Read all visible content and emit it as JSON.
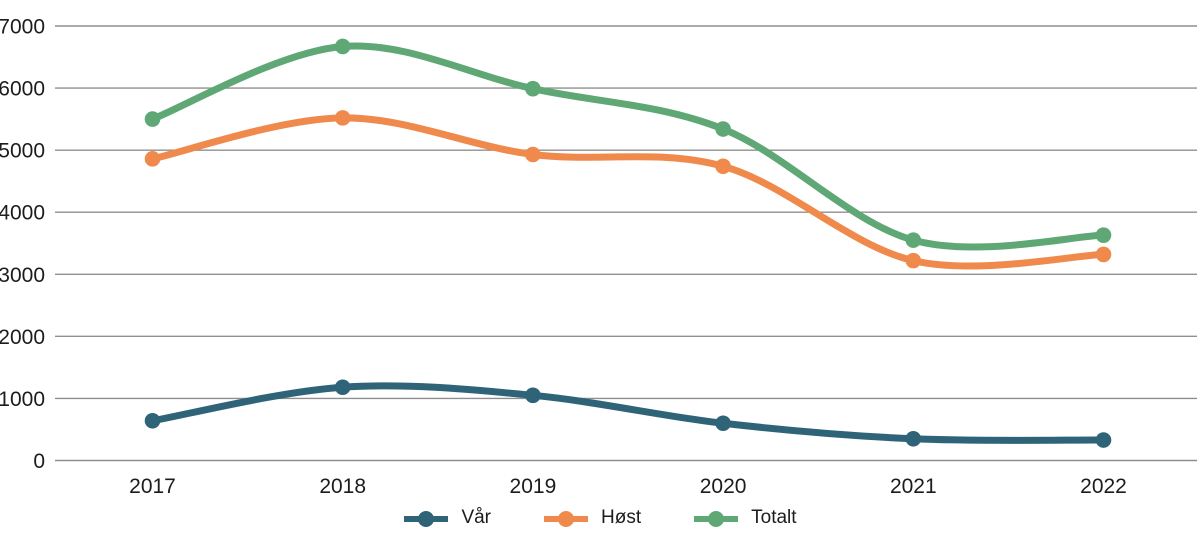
{
  "chart_data": {
    "type": "line",
    "title": "",
    "xlabel": "",
    "ylabel": "",
    "x_categories": [
      "2017",
      "2018",
      "2019",
      "2020",
      "2021",
      "2022"
    ],
    "y_ticks": [
      0,
      1000,
      2000,
      3000,
      4000,
      5000,
      6000,
      7000
    ],
    "ylim": [
      0,
      7000
    ],
    "grid": "horizontal",
    "gridline_color": "#8f8f8f",
    "text_color": "#1c1c1c",
    "legend_position": "bottom",
    "series": [
      {
        "name": "Vår",
        "color": "#2f6478",
        "values": [
          640,
          1180,
          1050,
          600,
          350,
          330
        ]
      },
      {
        "name": "Høst",
        "color": "#ef8a4c",
        "values": [
          4860,
          5520,
          4930,
          4740,
          3220,
          3320
        ]
      },
      {
        "name": "Totalt",
        "color": "#5fa876",
        "values": [
          5500,
          6670,
          5990,
          5340,
          3550,
          3630
        ]
      }
    ]
  }
}
